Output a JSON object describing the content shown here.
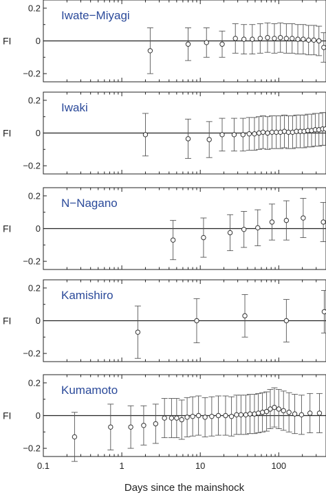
{
  "chart_data": {
    "type": "scatter",
    "xlabel": "Days since the mainshock",
    "x_scale": "log",
    "xlim": [
      0.1,
      400
    ],
    "x_ticks": [
      0.1,
      1,
      10,
      100
    ],
    "x_tick_labels": [
      "0.1",
      "1",
      "10",
      "100"
    ],
    "ylim": [
      -0.25,
      0.25
    ],
    "y_ticks": [
      0.2,
      0,
      -0.2
    ],
    "y_tick_labels": [
      "0.2",
      "0",
      "−0.2"
    ],
    "title_color": "#2b4a9a",
    "grid": false,
    "panels": [
      {
        "title": "Iwate−Miyagi",
        "ylabel": "FI",
        "points": [
          {
            "x": 2.3,
            "y": -0.06,
            "err": 0.14
          },
          {
            "x": 7,
            "y": -0.02,
            "err": 0.1
          },
          {
            "x": 12,
            "y": -0.01,
            "err": 0.09
          },
          {
            "x": 19,
            "y": -0.02,
            "err": 0.08
          },
          {
            "x": 28,
            "y": 0.015,
            "err": 0.09
          },
          {
            "x": 36,
            "y": 0.01,
            "err": 0.09
          },
          {
            "x": 46,
            "y": 0.01,
            "err": 0.09
          },
          {
            "x": 58,
            "y": 0.015,
            "err": 0.09
          },
          {
            "x": 72,
            "y": 0.02,
            "err": 0.09
          },
          {
            "x": 88,
            "y": 0.015,
            "err": 0.09
          },
          {
            "x": 105,
            "y": 0.02,
            "err": 0.09
          },
          {
            "x": 125,
            "y": 0.015,
            "err": 0.09
          },
          {
            "x": 148,
            "y": 0.015,
            "err": 0.09
          },
          {
            "x": 175,
            "y": 0.01,
            "err": 0.09
          },
          {
            "x": 205,
            "y": 0.01,
            "err": 0.09
          },
          {
            "x": 240,
            "y": 0.005,
            "err": 0.09
          },
          {
            "x": 280,
            "y": 0.005,
            "err": 0.09
          },
          {
            "x": 325,
            "y": 0.0,
            "err": 0.09
          },
          {
            "x": 375,
            "y": -0.04,
            "err": 0.09
          }
        ]
      },
      {
        "title": "Iwaki",
        "ylabel": "FI",
        "points": [
          {
            "x": 2.0,
            "y": -0.01,
            "err": 0.13
          },
          {
            "x": 7,
            "y": -0.035,
            "err": 0.12
          },
          {
            "x": 13,
            "y": -0.04,
            "err": 0.11
          },
          {
            "x": 19,
            "y": -0.01,
            "err": 0.1
          },
          {
            "x": 27,
            "y": -0.01,
            "err": 0.1
          },
          {
            "x": 35,
            "y": -0.01,
            "err": 0.1
          },
          {
            "x": 42,
            "y": -0.005,
            "err": 0.1
          },
          {
            "x": 49,
            "y": -0.005,
            "err": 0.1
          },
          {
            "x": 56,
            "y": 0.0,
            "err": 0.1
          },
          {
            "x": 63,
            "y": 0.005,
            "err": 0.1
          },
          {
            "x": 72,
            "y": 0.0,
            "err": 0.1
          },
          {
            "x": 82,
            "y": 0.005,
            "err": 0.1
          },
          {
            "x": 93,
            "y": 0.005,
            "err": 0.1
          },
          {
            "x": 105,
            "y": 0.005,
            "err": 0.1
          },
          {
            "x": 118,
            "y": 0.01,
            "err": 0.1
          },
          {
            "x": 133,
            "y": 0.005,
            "err": 0.1
          },
          {
            "x": 150,
            "y": 0.005,
            "err": 0.1
          },
          {
            "x": 168,
            "y": 0.01,
            "err": 0.1
          },
          {
            "x": 188,
            "y": 0.01,
            "err": 0.1
          },
          {
            "x": 210,
            "y": 0.01,
            "err": 0.1
          },
          {
            "x": 235,
            "y": 0.015,
            "err": 0.1
          },
          {
            "x": 262,
            "y": 0.015,
            "err": 0.1
          },
          {
            "x": 292,
            "y": 0.02,
            "err": 0.1
          },
          {
            "x": 325,
            "y": 0.02,
            "err": 0.1
          },
          {
            "x": 362,
            "y": 0.025,
            "err": 0.1
          },
          {
            "x": 395,
            "y": 0.025,
            "err": 0.1
          }
        ]
      },
      {
        "title": "N−Nagano",
        "ylabel": "FI",
        "points": [
          {
            "x": 4.5,
            "y": -0.07,
            "err": 0.12
          },
          {
            "x": 11,
            "y": -0.055,
            "err": 0.12
          },
          {
            "x": 24,
            "y": -0.025,
            "err": 0.11
          },
          {
            "x": 36,
            "y": -0.005,
            "err": 0.11
          },
          {
            "x": 54,
            "y": 0.005,
            "err": 0.11
          },
          {
            "x": 82,
            "y": 0.04,
            "err": 0.11
          },
          {
            "x": 125,
            "y": 0.05,
            "err": 0.12
          },
          {
            "x": 205,
            "y": 0.065,
            "err": 0.12
          },
          {
            "x": 370,
            "y": 0.04,
            "err": 0.12
          }
        ]
      },
      {
        "title": "Kamishiro",
        "ylabel": "FI",
        "points": [
          {
            "x": 1.6,
            "y": -0.07,
            "err": 0.16
          },
          {
            "x": 9,
            "y": 0.0,
            "err": 0.135
          },
          {
            "x": 37,
            "y": 0.03,
            "err": 0.13
          },
          {
            "x": 125,
            "y": 0.0,
            "err": 0.13
          },
          {
            "x": 380,
            "y": 0.055,
            "err": 0.13
          }
        ]
      },
      {
        "title": "Kumamoto",
        "ylabel": "FI",
        "points": [
          {
            "x": 0.25,
            "y": -0.13,
            "err": 0.15
          },
          {
            "x": 0.72,
            "y": -0.07,
            "err": 0.14
          },
          {
            "x": 1.3,
            "y": -0.07,
            "err": 0.13
          },
          {
            "x": 1.9,
            "y": -0.06,
            "err": 0.12
          },
          {
            "x": 2.7,
            "y": -0.05,
            "err": 0.12
          },
          {
            "x": 3.5,
            "y": -0.015,
            "err": 0.12
          },
          {
            "x": 4.3,
            "y": -0.015,
            "err": 0.12
          },
          {
            "x": 5.0,
            "y": -0.015,
            "err": 0.12
          },
          {
            "x": 5.8,
            "y": -0.025,
            "err": 0.12
          },
          {
            "x": 6.8,
            "y": -0.01,
            "err": 0.12
          },
          {
            "x": 8,
            "y": -0.005,
            "err": 0.12
          },
          {
            "x": 9.5,
            "y": 0.0,
            "err": 0.12
          },
          {
            "x": 11.5,
            "y": -0.01,
            "err": 0.12
          },
          {
            "x": 14,
            "y": -0.005,
            "err": 0.12
          },
          {
            "x": 17,
            "y": 0.0,
            "err": 0.12
          },
          {
            "x": 21,
            "y": 0.0,
            "err": 0.12
          },
          {
            "x": 25,
            "y": -0.005,
            "err": 0.12
          },
          {
            "x": 29,
            "y": 0.005,
            "err": 0.12
          },
          {
            "x": 33,
            "y": 0.005,
            "err": 0.12
          },
          {
            "x": 38,
            "y": 0.005,
            "err": 0.12
          },
          {
            "x": 43,
            "y": 0.01,
            "err": 0.12
          },
          {
            "x": 49,
            "y": 0.01,
            "err": 0.12
          },
          {
            "x": 55,
            "y": 0.015,
            "err": 0.12
          },
          {
            "x": 62,
            "y": 0.02,
            "err": 0.12
          },
          {
            "x": 70,
            "y": 0.025,
            "err": 0.12
          },
          {
            "x": 78,
            "y": 0.04,
            "err": 0.12
          },
          {
            "x": 88,
            "y": 0.05,
            "err": 0.12
          },
          {
            "x": 100,
            "y": 0.04,
            "err": 0.12
          },
          {
            "x": 115,
            "y": 0.03,
            "err": 0.12
          },
          {
            "x": 135,
            "y": 0.02,
            "err": 0.12
          },
          {
            "x": 160,
            "y": 0.01,
            "err": 0.12
          },
          {
            "x": 195,
            "y": 0.005,
            "err": 0.12
          },
          {
            "x": 250,
            "y": 0.015,
            "err": 0.12
          },
          {
            "x": 330,
            "y": 0.015,
            "err": 0.12
          }
        ]
      }
    ]
  }
}
